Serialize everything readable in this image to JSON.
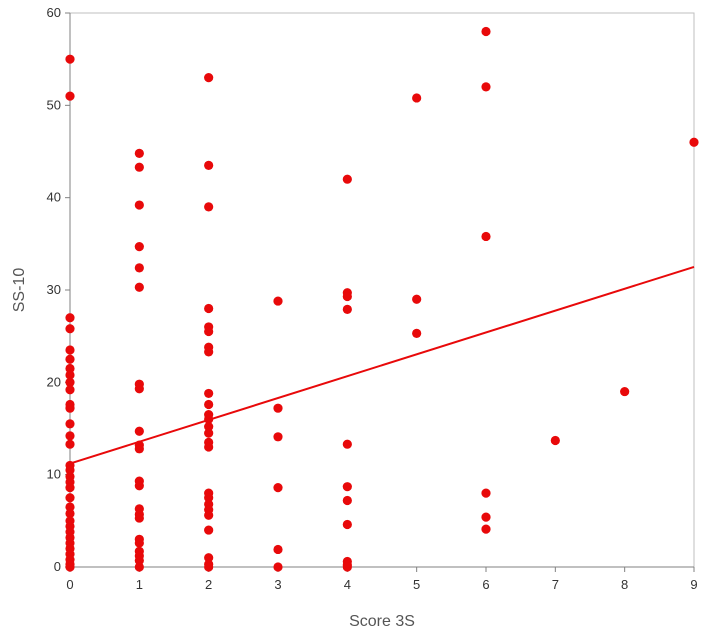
{
  "chart_data": {
    "type": "scatter",
    "title": "",
    "xlabel": "Score 3S",
    "ylabel": "SS-10",
    "xlim": [
      0,
      9
    ],
    "ylim": [
      0,
      60
    ],
    "x_ticks": [
      0,
      1,
      2,
      3,
      4,
      5,
      6,
      7,
      8,
      9
    ],
    "y_ticks": [
      0,
      10,
      20,
      30,
      40,
      50,
      60
    ],
    "grid": false,
    "legend": "none",
    "point_color": "#e8090a",
    "trendline": {
      "x": [
        0,
        9
      ],
      "y": [
        11.2,
        32.5
      ],
      "color": "#e8090a"
    },
    "points": [
      [
        0,
        55
      ],
      [
        0,
        51
      ],
      [
        0,
        27
      ],
      [
        0,
        25.8
      ],
      [
        0,
        23.5
      ],
      [
        0,
        22.5
      ],
      [
        0,
        21.5
      ],
      [
        0,
        20.8
      ],
      [
        0,
        20
      ],
      [
        0,
        19.2
      ],
      [
        0,
        17.6
      ],
      [
        0,
        17.2
      ],
      [
        0,
        15.5
      ],
      [
        0,
        14.2
      ],
      [
        0,
        13.3
      ],
      [
        0,
        11
      ],
      [
        0,
        10.5
      ],
      [
        0,
        9.8
      ],
      [
        0,
        9.2
      ],
      [
        0,
        8.6
      ],
      [
        0,
        7.5
      ],
      [
        0,
        6.5
      ],
      [
        0,
        5.8
      ],
      [
        0,
        5
      ],
      [
        0,
        4.4
      ],
      [
        0,
        3.8
      ],
      [
        0,
        3.2
      ],
      [
        0,
        2.6
      ],
      [
        0,
        2
      ],
      [
        0,
        1.4
      ],
      [
        0,
        0.8
      ],
      [
        0,
        0.3
      ],
      [
        0,
        0
      ],
      [
        1,
        44.8
      ],
      [
        1,
        43.3
      ],
      [
        1,
        39.2
      ],
      [
        1,
        34.7
      ],
      [
        1,
        32.4
      ],
      [
        1,
        30.3
      ],
      [
        1,
        19.8
      ],
      [
        1,
        19.3
      ],
      [
        1,
        14.7
      ],
      [
        1,
        13.2
      ],
      [
        1,
        12.8
      ],
      [
        1,
        9.3
      ],
      [
        1,
        8.8
      ],
      [
        1,
        6.3
      ],
      [
        1,
        5.7
      ],
      [
        1,
        5.3
      ],
      [
        1,
        3
      ],
      [
        1,
        2.6
      ],
      [
        1,
        1.7
      ],
      [
        1,
        1.2
      ],
      [
        1,
        0.7
      ],
      [
        1,
        0
      ],
      [
        2,
        53
      ],
      [
        2,
        43.5
      ],
      [
        2,
        39
      ],
      [
        2,
        28
      ],
      [
        2,
        26
      ],
      [
        2,
        25.5
      ],
      [
        2,
        23.8
      ],
      [
        2,
        23.3
      ],
      [
        2,
        18.8
      ],
      [
        2,
        17.6
      ],
      [
        2,
        16.5
      ],
      [
        2,
        16
      ],
      [
        2,
        15.2
      ],
      [
        2,
        14.5
      ],
      [
        2,
        13.5
      ],
      [
        2,
        13
      ],
      [
        2,
        8
      ],
      [
        2,
        7.5
      ],
      [
        2,
        6.8
      ],
      [
        2,
        6.2
      ],
      [
        2,
        5.6
      ],
      [
        2,
        4
      ],
      [
        2,
        1
      ],
      [
        2,
        0.3
      ],
      [
        2,
        0
      ],
      [
        3,
        28.8
      ],
      [
        3,
        17.2
      ],
      [
        3,
        14.1
      ],
      [
        3,
        8.6
      ],
      [
        3,
        1.9
      ],
      [
        3,
        0
      ],
      [
        4,
        42
      ],
      [
        4,
        29.7
      ],
      [
        4,
        29.3
      ],
      [
        4,
        27.9
      ],
      [
        4,
        13.3
      ],
      [
        4,
        8.7
      ],
      [
        4,
        7.2
      ],
      [
        4,
        4.6
      ],
      [
        4,
        0.6
      ],
      [
        4,
        0.2
      ],
      [
        4,
        0
      ],
      [
        5,
        50.8
      ],
      [
        5,
        29
      ],
      [
        5,
        25.3
      ],
      [
        6,
        58
      ],
      [
        6,
        52
      ],
      [
        6,
        35.8
      ],
      [
        6,
        8
      ],
      [
        6,
        5.4
      ],
      [
        6,
        4.1
      ],
      [
        7,
        13.7
      ],
      [
        8,
        19
      ],
      [
        9,
        46
      ]
    ]
  }
}
